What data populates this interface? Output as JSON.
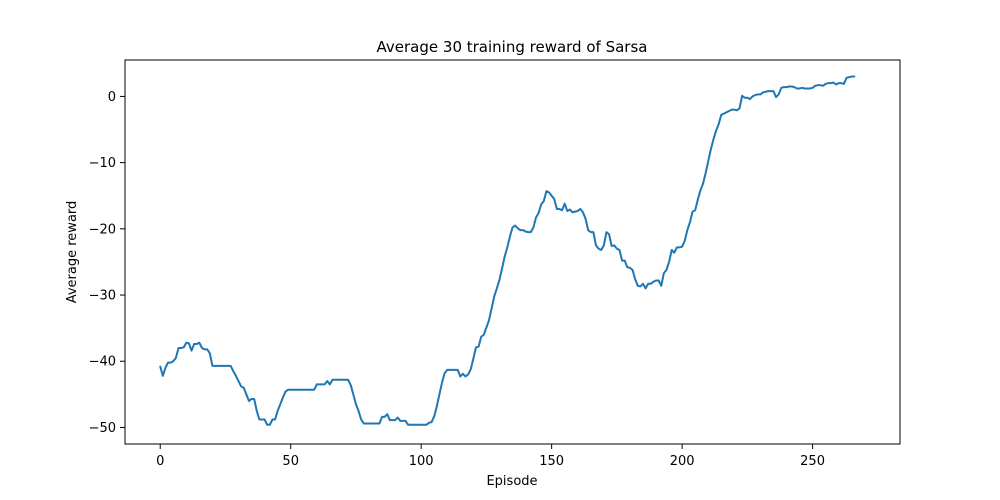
{
  "chart_data": {
    "type": "line",
    "title": "Average 30 training reward of Sarsa",
    "xlabel": "Episode",
    "ylabel": "Average reward",
    "xlim": [
      -13.5,
      283.5
    ],
    "ylim": [
      -52.5,
      5.5
    ],
    "xticks": [
      0,
      50,
      100,
      150,
      200,
      250
    ],
    "yticks": [
      -50,
      -40,
      -30,
      -20,
      -10,
      0
    ],
    "grid": false,
    "series": [
      {
        "color": "#1f77b4",
        "points": [
          [
            0,
            -40.8
          ],
          [
            1,
            -42.2
          ],
          [
            2,
            -41.0
          ],
          [
            3,
            -40.2
          ],
          [
            4,
            -40.2
          ],
          [
            5,
            -40.0
          ],
          [
            6,
            -39.5
          ],
          [
            7,
            -38.0
          ],
          [
            8,
            -38.0
          ],
          [
            9,
            -37.9
          ],
          [
            10,
            -37.2
          ],
          [
            11,
            -37.3
          ],
          [
            12,
            -38.4
          ],
          [
            13,
            -37.4
          ],
          [
            14,
            -37.4
          ],
          [
            15,
            -37.2
          ],
          [
            16,
            -38.0
          ],
          [
            17,
            -38.2
          ],
          [
            18,
            -38.2
          ],
          [
            19,
            -38.8
          ],
          [
            20,
            -40.7
          ],
          [
            21,
            -40.7
          ],
          [
            22,
            -40.7
          ],
          [
            23,
            -40.7
          ],
          [
            24,
            -40.7
          ],
          [
            25,
            -40.7
          ],
          [
            26,
            -40.7
          ],
          [
            27,
            -40.7
          ],
          [
            28,
            -41.5
          ],
          [
            29,
            -42.2
          ],
          [
            30,
            -43.0
          ],
          [
            31,
            -43.8
          ],
          [
            32,
            -44.0
          ],
          [
            33,
            -45.0
          ],
          [
            34,
            -46.0
          ],
          [
            35,
            -45.7
          ],
          [
            36,
            -45.7
          ],
          [
            37,
            -47.5
          ],
          [
            38,
            -48.8
          ],
          [
            39,
            -48.8
          ],
          [
            40,
            -48.8
          ],
          [
            41,
            -49.6
          ],
          [
            42,
            -49.6
          ],
          [
            43,
            -48.8
          ],
          [
            44,
            -48.8
          ],
          [
            45,
            -47.5
          ],
          [
            46,
            -46.5
          ],
          [
            47,
            -45.5
          ],
          [
            48,
            -44.6
          ],
          [
            49,
            -44.3
          ],
          [
            50,
            -44.3
          ],
          [
            51,
            -44.3
          ],
          [
            52,
            -44.3
          ],
          [
            53,
            -44.3
          ],
          [
            54,
            -44.3
          ],
          [
            55,
            -44.3
          ],
          [
            56,
            -44.3
          ],
          [
            57,
            -44.3
          ],
          [
            58,
            -44.3
          ],
          [
            59,
            -44.3
          ],
          [
            60,
            -43.5
          ],
          [
            61,
            -43.5
          ],
          [
            62,
            -43.5
          ],
          [
            63,
            -43.5
          ],
          [
            64,
            -43.0
          ],
          [
            65,
            -43.5
          ],
          [
            66,
            -42.8
          ],
          [
            67,
            -42.8
          ],
          [
            68,
            -42.8
          ],
          [
            69,
            -42.8
          ],
          [
            70,
            -42.8
          ],
          [
            71,
            -42.8
          ],
          [
            72,
            -42.8
          ],
          [
            73,
            -43.6
          ],
          [
            74,
            -45.0
          ],
          [
            75,
            -46.5
          ],
          [
            76,
            -47.5
          ],
          [
            77,
            -48.8
          ],
          [
            78,
            -49.4
          ],
          [
            79,
            -49.4
          ],
          [
            80,
            -49.4
          ],
          [
            81,
            -49.4
          ],
          [
            82,
            -49.4
          ],
          [
            83,
            -49.4
          ],
          [
            84,
            -49.4
          ],
          [
            85,
            -48.4
          ],
          [
            86,
            -48.4
          ],
          [
            87,
            -48.0
          ],
          [
            88,
            -48.9
          ],
          [
            89,
            -48.9
          ],
          [
            90,
            -48.9
          ],
          [
            91,
            -48.5
          ],
          [
            92,
            -49.0
          ],
          [
            93,
            -49.0
          ],
          [
            94,
            -49.0
          ],
          [
            95,
            -49.6
          ],
          [
            96,
            -49.6
          ],
          [
            97,
            -49.6
          ],
          [
            98,
            -49.6
          ],
          [
            99,
            -49.6
          ],
          [
            100,
            -49.6
          ],
          [
            101,
            -49.6
          ],
          [
            102,
            -49.6
          ],
          [
            103,
            -49.3
          ],
          [
            104,
            -49.2
          ],
          [
            105,
            -48.3
          ],
          [
            106,
            -46.8
          ],
          [
            107,
            -45.0
          ],
          [
            108,
            -43.2
          ],
          [
            109,
            -41.8
          ],
          [
            110,
            -41.3
          ],
          [
            111,
            -41.3
          ],
          [
            112,
            -41.3
          ],
          [
            113,
            -41.3
          ],
          [
            114,
            -41.3
          ],
          [
            115,
            -42.3
          ],
          [
            116,
            -41.9
          ],
          [
            117,
            -42.3
          ],
          [
            118,
            -42.0
          ],
          [
            119,
            -41.2
          ],
          [
            120,
            -39.6
          ],
          [
            121,
            -37.9
          ],
          [
            122,
            -37.8
          ],
          [
            123,
            -36.3
          ],
          [
            124,
            -36.0
          ],
          [
            125,
            -34.9
          ],
          [
            126,
            -33.8
          ],
          [
            127,
            -32.0
          ],
          [
            128,
            -30.2
          ],
          [
            129,
            -29.0
          ],
          [
            130,
            -27.7
          ],
          [
            131,
            -26.0
          ],
          [
            132,
            -24.2
          ],
          [
            133,
            -22.8
          ],
          [
            134,
            -21.2
          ],
          [
            135,
            -19.8
          ],
          [
            136,
            -19.5
          ],
          [
            137,
            -19.9
          ],
          [
            138,
            -20.2
          ],
          [
            139,
            -20.2
          ],
          [
            140,
            -20.4
          ],
          [
            141,
            -20.5
          ],
          [
            142,
            -20.5
          ],
          [
            143,
            -19.8
          ],
          [
            144,
            -18.3
          ],
          [
            145,
            -17.6
          ],
          [
            146,
            -16.3
          ],
          [
            147,
            -15.8
          ],
          [
            148,
            -14.3
          ],
          [
            149,
            -14.5
          ],
          [
            150,
            -15.0
          ],
          [
            151,
            -15.5
          ],
          [
            152,
            -17.0
          ],
          [
            153,
            -17.0
          ],
          [
            154,
            -17.2
          ],
          [
            155,
            -16.2
          ],
          [
            156,
            -17.3
          ],
          [
            157,
            -17.1
          ],
          [
            158,
            -17.5
          ],
          [
            159,
            -17.4
          ],
          [
            160,
            -17.3
          ],
          [
            161,
            -17.0
          ],
          [
            162,
            -17.5
          ],
          [
            163,
            -18.5
          ],
          [
            164,
            -20.2
          ],
          [
            165,
            -20.5
          ],
          [
            166,
            -20.5
          ],
          [
            167,
            -22.5
          ],
          [
            168,
            -23.0
          ],
          [
            169,
            -23.2
          ],
          [
            170,
            -22.5
          ],
          [
            171,
            -20.5
          ],
          [
            172,
            -20.8
          ],
          [
            173,
            -22.6
          ],
          [
            174,
            -22.5
          ],
          [
            175,
            -23.0
          ],
          [
            176,
            -23.2
          ],
          [
            177,
            -24.8
          ],
          [
            178,
            -24.8
          ],
          [
            179,
            -25.8
          ],
          [
            180,
            -25.9
          ],
          [
            181,
            -26.2
          ],
          [
            182,
            -27.6
          ],
          [
            183,
            -28.6
          ],
          [
            184,
            -28.7
          ],
          [
            185,
            -28.3
          ],
          [
            186,
            -29.0
          ],
          [
            187,
            -28.3
          ],
          [
            188,
            -28.3
          ],
          [
            189,
            -28.0
          ],
          [
            190,
            -27.8
          ],
          [
            191,
            -27.8
          ],
          [
            192,
            -28.6
          ],
          [
            193,
            -26.7
          ],
          [
            194,
            -26.2
          ],
          [
            195,
            -25.0
          ],
          [
            196,
            -23.2
          ],
          [
            197,
            -23.6
          ],
          [
            198,
            -22.8
          ],
          [
            199,
            -22.8
          ],
          [
            200,
            -22.7
          ],
          [
            201,
            -21.8
          ],
          [
            202,
            -20.2
          ],
          [
            203,
            -19.0
          ],
          [
            204,
            -17.4
          ],
          [
            205,
            -17.2
          ],
          [
            206,
            -15.6
          ],
          [
            207,
            -14.2
          ],
          [
            208,
            -13.2
          ],
          [
            209,
            -11.6
          ],
          [
            210,
            -9.8
          ],
          [
            211,
            -8.0
          ],
          [
            212,
            -6.5
          ],
          [
            213,
            -5.2
          ],
          [
            214,
            -4.2
          ],
          [
            215,
            -2.8
          ],
          [
            216,
            -2.6
          ],
          [
            217,
            -2.4
          ],
          [
            218,
            -2.2
          ],
          [
            219,
            -2.0
          ],
          [
            220,
            -2.0
          ],
          [
            221,
            -2.1
          ],
          [
            222,
            -1.8
          ],
          [
            223,
            0.1
          ],
          [
            224,
            -0.2
          ],
          [
            225,
            -0.2
          ],
          [
            226,
            -0.4
          ],
          [
            227,
            0.0
          ],
          [
            228,
            0.2
          ],
          [
            229,
            0.3
          ],
          [
            230,
            0.3
          ],
          [
            231,
            0.6
          ],
          [
            232,
            0.7
          ],
          [
            233,
            0.8
          ],
          [
            234,
            0.8
          ],
          [
            235,
            0.8
          ],
          [
            236,
            -0.1
          ],
          [
            237,
            0.3
          ],
          [
            238,
            1.3
          ],
          [
            239,
            1.4
          ],
          [
            240,
            1.4
          ],
          [
            241,
            1.5
          ],
          [
            242,
            1.5
          ],
          [
            243,
            1.4
          ],
          [
            244,
            1.2
          ],
          [
            245,
            1.2
          ],
          [
            246,
            1.3
          ],
          [
            247,
            1.2
          ],
          [
            248,
            1.2
          ],
          [
            249,
            1.2
          ],
          [
            250,
            1.3
          ],
          [
            251,
            1.6
          ],
          [
            252,
            1.7
          ],
          [
            253,
            1.7
          ],
          [
            254,
            1.6
          ],
          [
            255,
            1.9
          ],
          [
            256,
            2.0
          ],
          [
            257,
            2.0
          ],
          [
            258,
            2.1
          ],
          [
            259,
            1.8
          ],
          [
            260,
            2.0
          ],
          [
            261,
            2.0
          ],
          [
            262,
            1.9
          ],
          [
            263,
            2.8
          ],
          [
            264,
            2.9
          ],
          [
            265,
            3.0
          ],
          [
            266,
            3.0
          ]
        ]
      }
    ]
  }
}
